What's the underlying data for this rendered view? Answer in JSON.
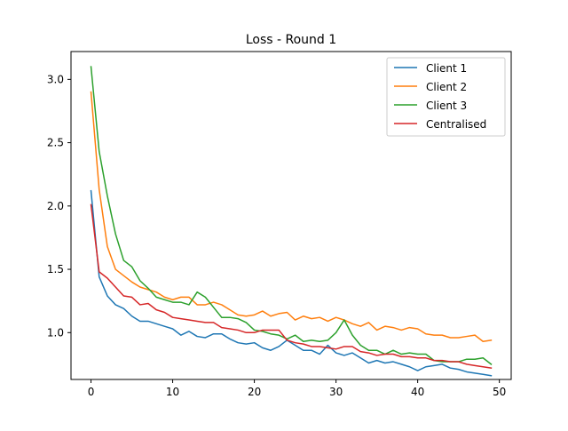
{
  "chart_data": {
    "type": "line",
    "title": "Loss - Round 1",
    "xlabel": "",
    "ylabel": "",
    "xlim": [
      -2.45,
      51.45
    ],
    "ylim": [
      0.63,
      3.22
    ],
    "xticks": [
      0,
      10,
      20,
      30,
      40,
      50
    ],
    "xtick_labels": [
      "0",
      "10",
      "20",
      "30",
      "40",
      "50"
    ],
    "yticks": [
      1.0,
      1.5,
      2.0,
      2.5,
      3.0
    ],
    "ytick_labels": [
      "1.0",
      "1.5",
      "2.0",
      "2.5",
      "3.0"
    ],
    "grid": false,
    "legend_position": "top-right",
    "x": [
      0,
      1,
      2,
      3,
      4,
      5,
      6,
      7,
      8,
      9,
      10,
      11,
      12,
      13,
      14,
      15,
      16,
      17,
      18,
      19,
      20,
      21,
      22,
      23,
      24,
      25,
      26,
      27,
      28,
      29,
      30,
      31,
      32,
      33,
      34,
      35,
      36,
      37,
      38,
      39,
      40,
      41,
      42,
      43,
      44,
      45,
      46,
      47,
      48,
      49
    ],
    "series": [
      {
        "name": "Client 1",
        "color": "#1f77b4",
        "values": [
          2.12,
          1.44,
          1.29,
          1.22,
          1.19,
          1.13,
          1.09,
          1.09,
          1.07,
          1.05,
          1.03,
          0.98,
          1.01,
          0.97,
          0.96,
          0.99,
          0.99,
          0.95,
          0.92,
          0.91,
          0.92,
          0.88,
          0.86,
          0.89,
          0.94,
          0.9,
          0.86,
          0.86,
          0.83,
          0.9,
          0.84,
          0.82,
          0.84,
          0.8,
          0.76,
          0.78,
          0.76,
          0.77,
          0.75,
          0.73,
          0.7,
          0.73,
          0.74,
          0.75,
          0.72,
          0.71,
          0.69,
          0.68,
          0.67,
          0.66
        ]
      },
      {
        "name": "Client 2",
        "color": "#ff7f0e",
        "values": [
          2.9,
          2.13,
          1.68,
          1.5,
          1.45,
          1.4,
          1.36,
          1.34,
          1.32,
          1.28,
          1.26,
          1.28,
          1.28,
          1.22,
          1.22,
          1.24,
          1.22,
          1.18,
          1.14,
          1.13,
          1.14,
          1.17,
          1.13,
          1.15,
          1.16,
          1.1,
          1.13,
          1.11,
          1.12,
          1.09,
          1.12,
          1.1,
          1.07,
          1.05,
          1.08,
          1.02,
          1.05,
          1.04,
          1.02,
          1.04,
          1.03,
          0.99,
          0.98,
          0.98,
          0.96,
          0.96,
          0.97,
          0.98,
          0.93,
          0.94
        ]
      },
      {
        "name": "Client 3",
        "color": "#2ca02c",
        "values": [
          3.1,
          2.43,
          2.08,
          1.78,
          1.57,
          1.52,
          1.41,
          1.35,
          1.28,
          1.26,
          1.24,
          1.24,
          1.22,
          1.32,
          1.28,
          1.2,
          1.12,
          1.12,
          1.11,
          1.08,
          1.02,
          1.01,
          0.99,
          0.98,
          0.95,
          0.98,
          0.93,
          0.94,
          0.93,
          0.94,
          1.0,
          1.1,
          0.98,
          0.9,
          0.86,
          0.86,
          0.83,
          0.86,
          0.83,
          0.84,
          0.83,
          0.83,
          0.78,
          0.77,
          0.77,
          0.77,
          0.79,
          0.79,
          0.8,
          0.75
        ]
      },
      {
        "name": "Centralised",
        "color": "#d62728",
        "values": [
          2.01,
          1.48,
          1.43,
          1.36,
          1.29,
          1.28,
          1.22,
          1.23,
          1.18,
          1.16,
          1.12,
          1.11,
          1.1,
          1.09,
          1.08,
          1.08,
          1.04,
          1.03,
          1.02,
          1.0,
          1.0,
          1.02,
          1.02,
          1.02,
          0.94,
          0.92,
          0.91,
          0.89,
          0.89,
          0.88,
          0.87,
          0.89,
          0.89,
          0.85,
          0.84,
          0.82,
          0.83,
          0.83,
          0.81,
          0.81,
          0.8,
          0.8,
          0.78,
          0.78,
          0.77,
          0.77,
          0.75,
          0.74,
          0.73,
          0.72
        ]
      }
    ]
  }
}
